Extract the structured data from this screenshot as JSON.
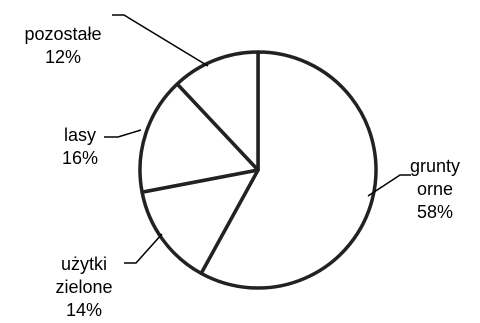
{
  "chart_data": {
    "type": "pie",
    "title": "",
    "start": "top",
    "direction": "clockwise",
    "slices": [
      {
        "label_lines": [
          "grunty",
          "orne"
        ],
        "value": 58,
        "value_text": "58%"
      },
      {
        "label_lines": [
          "użytki",
          "zielone"
        ],
        "value": 14,
        "value_text": "14%"
      },
      {
        "label_lines": [
          "lasy"
        ],
        "value": 16,
        "value_text": "16%"
      },
      {
        "label_lines": [
          "pozostałe"
        ],
        "value": 12,
        "value_text": "12%"
      }
    ],
    "colors": {
      "fill": "#ffffff",
      "stroke": "#222222",
      "leader": "#000000",
      "text": "#000000"
    }
  }
}
